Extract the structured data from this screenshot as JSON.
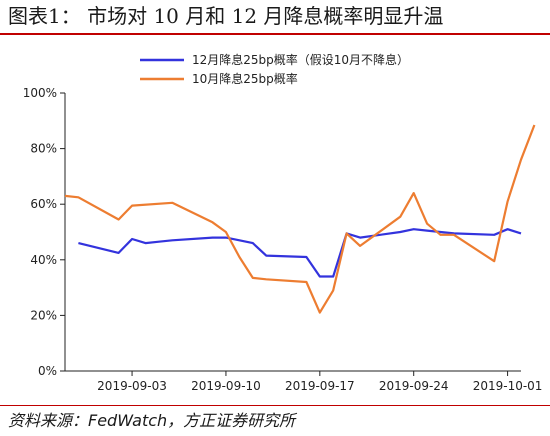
{
  "header": {
    "title": "图表1：   市场对 10 月和 12 月降息概率明显升温"
  },
  "footer": {
    "source": "资料来源：FedWatch，方正证券研究所"
  },
  "colors": {
    "dec_series": "#3333dd",
    "oct_series": "#ed7d31",
    "title_rule": "#c00000"
  },
  "chart_data": {
    "type": "line",
    "title": "",
    "xlabel": "",
    "ylabel": "",
    "ylim": [
      0,
      100
    ],
    "y_ticks": [
      0,
      20,
      40,
      60,
      80,
      100
    ],
    "y_tick_labels": [
      "0%",
      "20%",
      "40%",
      "60%",
      "80%",
      "100%"
    ],
    "x_ticks": [
      "2019-09-03",
      "2019-09-10",
      "2019-09-17",
      "2019-09-24",
      "2019-10-01"
    ],
    "x_range": [
      "2019-08-29",
      "2019-10-02"
    ],
    "legend_position": "top",
    "grid": false,
    "series": [
      {
        "name": "12月降息25bp概率（假设10月不降息）",
        "x": [
          "2019-08-30",
          "2019-09-02",
          "2019-09-03",
          "2019-09-04",
          "2019-09-05",
          "2019-09-06",
          "2019-09-09",
          "2019-09-10",
          "2019-09-11",
          "2019-09-12",
          "2019-09-13",
          "2019-09-16",
          "2019-09-17",
          "2019-09-18",
          "2019-09-19",
          "2019-09-20",
          "2019-09-23",
          "2019-09-24",
          "2019-09-25",
          "2019-09-26",
          "2019-09-27",
          "2019-09-30",
          "2019-10-01",
          "2019-10-02"
        ],
        "values": [
          46,
          42.5,
          47.5,
          46,
          46.5,
          47,
          48,
          48,
          47,
          46,
          41.5,
          41,
          34,
          34,
          49.5,
          48,
          50,
          51,
          50.5,
          50,
          49.5,
          49,
          51,
          49.5
        ]
      },
      {
        "name": "10月降息25bp概率",
        "x": [
          "2019-08-29",
          "2019-08-30",
          "2019-09-02",
          "2019-09-03",
          "2019-09-06",
          "2019-09-09",
          "2019-09-10",
          "2019-09-11",
          "2019-09-12",
          "2019-09-13",
          "2019-09-16",
          "2019-09-17",
          "2019-09-18",
          "2019-09-19",
          "2019-09-20",
          "2019-09-23",
          "2019-09-24",
          "2019-09-25",
          "2019-09-26",
          "2019-09-27",
          "2019-09-30",
          "2019-10-01",
          "2019-10-02",
          "2019-10-03"
        ],
        "values": [
          63,
          62.5,
          54.5,
          59.5,
          60.5,
          53.5,
          50,
          41,
          33.5,
          33,
          32,
          21,
          29,
          49.5,
          45,
          55.5,
          64,
          53,
          49,
          49,
          39.5,
          61,
          76,
          88.5
        ]
      }
    ]
  }
}
